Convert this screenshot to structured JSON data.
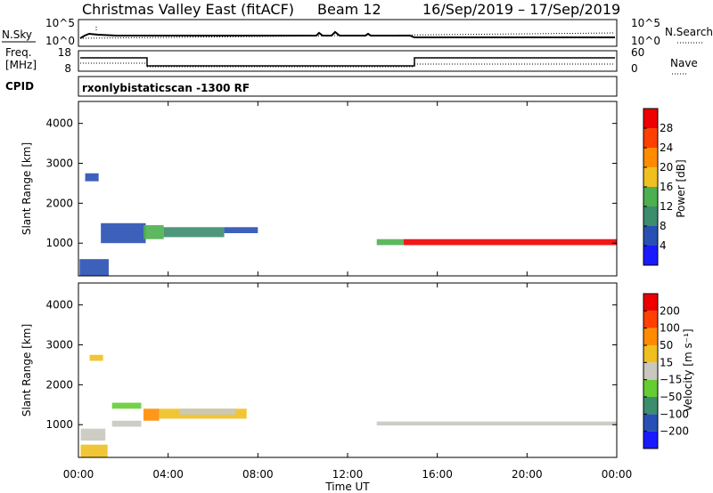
{
  "header": {
    "title": "Christmas Valley East (fitACF)",
    "beam": "Beam 12",
    "date_range": "16/Sep/2019 – 17/Sep/2019"
  },
  "top_panels": {
    "nsky_label": "N.Sky",
    "nsky_ticks": [
      "10^5",
      "10^0"
    ],
    "nsearch_label": "N.Search",
    "nsearch_ticks": [
      "10^5",
      "10^0"
    ],
    "freq_label_1": "Freq.",
    "freq_label_2": "[MHz]",
    "freq_ticks": [
      "18",
      "8"
    ],
    "nave_label": "Nave",
    "nave_ticks": [
      "60",
      "0"
    ],
    "cpid_label": "CPID",
    "cpid_value": "rxonlybistaticscan  -1300 RF"
  },
  "chart_data": [
    {
      "type": "heatmap",
      "panel": "power",
      "title": "",
      "ylabel": "Slant Range [km]",
      "xlabel": "",
      "x_range_hours": [
        0,
        24
      ],
      "ylim": [
        180,
        4550
      ],
      "yticks": [
        1000,
        2000,
        3000,
        4000
      ],
      "colorbar": {
        "label": "Power [dB]",
        "ticks": [
          "4",
          "8",
          "12",
          "16",
          "20",
          "24",
          "28"
        ],
        "colors": [
          "#1a1aff",
          "#2850b4",
          "#3c8c6e",
          "#4cb050",
          "#f0c020",
          "#ff8c00",
          "#ff4000",
          "#ee0000"
        ]
      },
      "regions": [
        {
          "t": [
            0.05,
            1.35
          ],
          "r": [
            180,
            600
          ],
          "color": "#2850b4"
        },
        {
          "t": [
            0.3,
            0.9
          ],
          "r": [
            2550,
            2750
          ],
          "color": "#2850b4"
        },
        {
          "t": [
            1.0,
            3.0
          ],
          "r": [
            1000,
            1500
          ],
          "color": "#2850b4"
        },
        {
          "t": [
            2.9,
            3.8
          ],
          "r": [
            1100,
            1450
          ],
          "color": "#4cb050"
        },
        {
          "t": [
            3.8,
            6.5
          ],
          "r": [
            1150,
            1400
          ],
          "color": "#3c8c6e"
        },
        {
          "t": [
            6.5,
            8.0
          ],
          "r": [
            1250,
            1400
          ],
          "color": "#2850b4"
        },
        {
          "t": [
            13.3,
            14.5
          ],
          "r": [
            950,
            1100
          ],
          "color": "#4cb050"
        },
        {
          "t": [
            14.5,
            24.0
          ],
          "r": [
            950,
            1100
          ],
          "color": "#ee0000"
        }
      ]
    },
    {
      "type": "heatmap",
      "panel": "velocity",
      "title": "",
      "ylabel": "Slant Range [km]",
      "xlabel": "Time UT",
      "x_range_hours": [
        0,
        24
      ],
      "ylim": [
        180,
        4550
      ],
      "yticks": [
        1000,
        2000,
        3000,
        4000
      ],
      "xtick_labels": [
        "00:00",
        "04:00",
        "08:00",
        "12:00",
        "16:00",
        "20:00",
        "00:00"
      ],
      "colorbar": {
        "label": "Velocity [m s⁻¹]",
        "ticks": [
          "200",
          "100",
          "50",
          "15",
          "−15",
          "−50",
          "−100",
          "−200"
        ],
        "colors": [
          "#1a1aff",
          "#2850b4",
          "#3c8c6e",
          "#66cc33",
          "#c8c8c0",
          "#f0c020",
          "#ff8c00",
          "#ff4000",
          "#ee0000"
        ]
      },
      "regions": [
        {
          "t": [
            0.1,
            1.3
          ],
          "r": [
            180,
            500
          ],
          "color": "#f0c020"
        },
        {
          "t": [
            0.1,
            1.2
          ],
          "r": [
            600,
            900
          ],
          "color": "#c8c8c0"
        },
        {
          "t": [
            0.5,
            1.1
          ],
          "r": [
            2600,
            2750
          ],
          "color": "#f0c020"
        },
        {
          "t": [
            1.5,
            2.8
          ],
          "r": [
            1400,
            1550
          ],
          "color": "#66cc33"
        },
        {
          "t": [
            1.5,
            2.8
          ],
          "r": [
            950,
            1100
          ],
          "color": "#c8c8c0"
        },
        {
          "t": [
            2.9,
            3.6
          ],
          "r": [
            1100,
            1400
          ],
          "color": "#ff8c00"
        },
        {
          "t": [
            3.6,
            7.5
          ],
          "r": [
            1150,
            1400
          ],
          "color": "#f0c020"
        },
        {
          "t": [
            4.5,
            7.0
          ],
          "r": [
            1250,
            1400
          ],
          "color": "#c8c8c0"
        },
        {
          "t": [
            13.3,
            24.0
          ],
          "r": [
            980,
            1080
          ],
          "color": "#c8c8c0"
        }
      ]
    }
  ]
}
